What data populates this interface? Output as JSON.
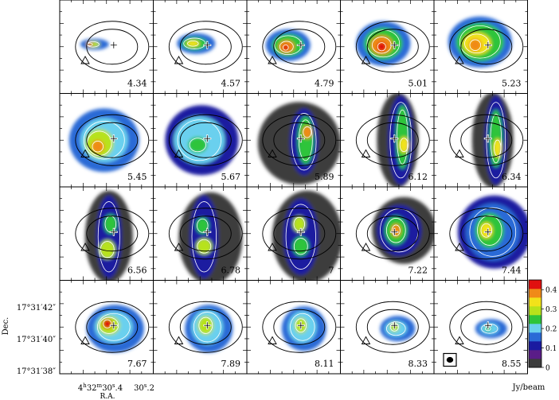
{
  "chart_data": {
    "type": "heatmap",
    "description_kind": "channel-map",
    "panels": [
      {
        "velocity": "4.34"
      },
      {
        "velocity": "4.57"
      },
      {
        "velocity": "4.79"
      },
      {
        "velocity": "5.01"
      },
      {
        "velocity": "5.23"
      },
      {
        "velocity": "5.45"
      },
      {
        "velocity": "5.67"
      },
      {
        "velocity": "5.89"
      },
      {
        "velocity": "6.12"
      },
      {
        "velocity": "6.34"
      },
      {
        "velocity": "6.56"
      },
      {
        "velocity": "6.78"
      },
      {
        "velocity": "7"
      },
      {
        "velocity": "7.22"
      },
      {
        "velocity": "7.44"
      },
      {
        "velocity": "7.67"
      },
      {
        "velocity": "7.89"
      },
      {
        "velocity": "8.11"
      },
      {
        "velocity": "8.33"
      },
      {
        "velocity": "8.55"
      }
    ],
    "grid": {
      "rows": 4,
      "cols": 5
    },
    "ylabel": "Dec.",
    "xlabel": "R.A.",
    "ytick_labels": [
      "17°31′42″",
      "17°31′40″",
      "17°31′38″"
    ],
    "xtick_labels": [
      {
        "main": "4",
        "sup1": "h",
        "mid": "32",
        "sup2": "m",
        "tail": "30",
        "sup3": "s",
        "end": ".4"
      },
      {
        "main": "30",
        "sup3": "s",
        "end": ".2"
      }
    ],
    "colorbar": {
      "label": "Jy/beam",
      "range": [
        0,
        0.45
      ],
      "ticks": [
        "0.4",
        "0.3",
        "0.2",
        "0.1",
        "0"
      ],
      "tick_values": [
        0.4,
        0.3,
        0.2,
        0.1,
        0.0
      ],
      "colors": [
        "#3c3c3c",
        "#5a1d88",
        "#1a1aa0",
        "#2a6ad6",
        "#6ad0ee",
        "#2ec43a",
        "#b7e21b",
        "#f2e21a",
        "#f08a18",
        "#e01010"
      ]
    },
    "markers": [
      "cross",
      "triangle",
      "beam-ellipse"
    ]
  }
}
